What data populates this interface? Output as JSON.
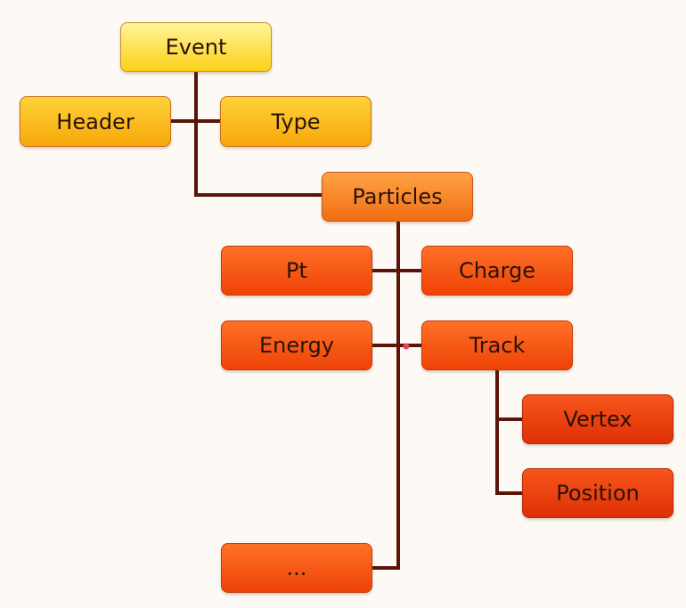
{
  "nodes": {
    "event": "Event",
    "header": "Header",
    "type": "Type",
    "particles": "Particles",
    "pt": "Pt",
    "charge": "Charge",
    "energy": "Energy",
    "track": "Track",
    "vertex": "Vertex",
    "position": "Position",
    "more": "..."
  },
  "colors": {
    "connector": "#5a1408",
    "dot": "#e8435a",
    "background": "#fdfaf6"
  }
}
